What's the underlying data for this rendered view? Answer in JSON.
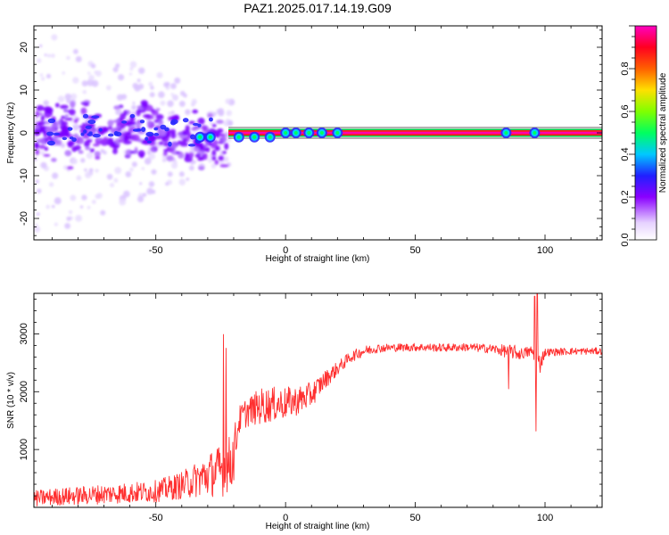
{
  "figure_title": "PAZ1.2025.017.14.19.G09",
  "chart_data": [
    {
      "type": "heatmap",
      "xlabel": "Height of straight line (km)",
      "ylabel": "Frequency (Hz)",
      "xlim": [
        -97,
        122
      ],
      "ylim": [
        -25,
        25
      ],
      "xticks": [
        -50,
        0,
        50,
        100
      ],
      "yticks": [
        -20,
        -10,
        0,
        10,
        20
      ],
      "colorbar": {
        "label": "Normalized spectral amplitude",
        "range": [
          0,
          1
        ],
        "ticks": [
          "0.0",
          "0.2",
          "0.4",
          "0.6",
          "0.8"
        ],
        "colormap": [
          "#ffffff",
          "#c8a6ff",
          "#7a00ff",
          "#1a1aff",
          "#00c8ff",
          "#00ff40",
          "#c8ff00",
          "#ffb000",
          "#ff2000",
          "#ff00c8"
        ]
      },
      "features": {
        "constant_tone_from_x_km": -22,
        "constant_tone_frequency_hz": 0,
        "diffuse_scatter_x_range_km": [
          -97,
          -20
        ],
        "diffuse_scatter_freq_range_hz": [
          -25,
          25
        ],
        "compact_blob_centers_km": [
          -33,
          -29,
          -18,
          -12,
          -6,
          0,
          4,
          9,
          14,
          20,
          85,
          96
        ]
      }
    },
    {
      "type": "line",
      "xlabel": "Height of straight line (km)",
      "ylabel": "SNR (10 * v/v)",
      "xlim": [
        -97,
        122
      ],
      "ylim": [
        0,
        3700
      ],
      "xticks": [
        -50,
        0,
        50,
        100
      ],
      "yticks": [
        1000,
        2000,
        3000
      ],
      "color": "#ff3030",
      "series": [
        {
          "x": [
            -97,
            -90,
            -80,
            -70,
            -60,
            -50,
            -45,
            -40,
            -35,
            -30,
            -25,
            -22,
            -20,
            -18,
            -15,
            -12,
            -10,
            -5,
            0,
            5,
            10,
            15,
            20,
            25,
            30,
            35,
            40,
            50,
            60,
            70,
            80,
            85,
            88,
            90,
            95,
            96,
            97,
            100,
            110,
            122
          ],
          "y": [
            150,
            180,
            200,
            230,
            250,
            280,
            330,
            380,
            470,
            560,
            640,
            700,
            900,
            1500,
            1650,
            1700,
            1750,
            1780,
            1800,
            1850,
            1950,
            2200,
            2400,
            2600,
            2700,
            2750,
            2760,
            2770,
            2760,
            2770,
            2740,
            2700,
            2690,
            2650,
            2700,
            2600,
            2400,
            2680,
            2700,
            2700
          ],
          "noise": [
            140,
            150,
            160,
            170,
            180,
            190,
            210,
            240,
            300,
            380,
            450,
            520,
            480,
            250,
            260,
            280,
            320,
            300,
            280,
            250,
            220,
            160,
            120,
            100,
            90,
            80,
            70,
            70,
            70,
            70,
            80,
            110,
            130,
            100,
            100,
            150,
            250,
            70,
            60,
            60
          ]
        }
      ],
      "spikes": [
        {
          "x": -24,
          "y": 2990
        },
        {
          "x": -23,
          "y": 2750
        },
        {
          "x": 86,
          "y": 2050
        },
        {
          "x": 96,
          "y": 3650
        },
        {
          "x": 96.5,
          "y": 1320
        },
        {
          "x": 97,
          "y": 3700
        }
      ]
    }
  ]
}
